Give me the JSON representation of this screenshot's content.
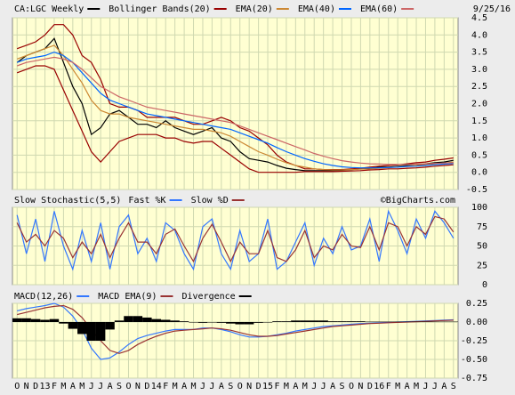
{
  "chart_data": [
    {
      "type": "line",
      "date": "9/25/16",
      "ylim": [
        -0.5,
        4.5
      ],
      "yticks": [
        4.5,
        {
          "value": 4,
          "label": "4.0"
        },
        3.5,
        {
          "value": 3,
          "label": "3.0"
        },
        2.5,
        {
          "value": 2,
          "label": "2.0"
        },
        1.5,
        {
          "value": 1,
          "label": "1.0"
        },
        0.5,
        {
          "value": 0,
          "label": "0.0"
        },
        -0.5
      ],
      "grid": true,
      "series": [
        {
          "name": "CA:LGC Weekly",
          "color": "#000000",
          "values": [
            3.2,
            3.4,
            3.5,
            3.6,
            3.9,
            3.2,
            2.5,
            2.0,
            1.1,
            1.3,
            1.7,
            1.8,
            1.6,
            1.4,
            1.4,
            1.3,
            1.5,
            1.3,
            1.2,
            1.1,
            1.2,
            1.3,
            1.0,
            0.9,
            0.6,
            0.4,
            0.35,
            0.3,
            0.2,
            0.12,
            0.08,
            0.05,
            0.05,
            0.05,
            0.05,
            0.06,
            0.08,
            0.1,
            0.12,
            0.15,
            0.15,
            0.18,
            0.2,
            0.2,
            0.25,
            0.28,
            0.3,
            0.35
          ]
        },
        {
          "name": "Bollinger Bands(20)",
          "color": "#990000",
          "values": [
            3.6,
            3.7,
            3.8,
            4.0,
            4.3,
            4.3,
            4.0,
            3.4,
            3.2,
            2.7,
            2.0,
            1.9,
            1.9,
            1.8,
            1.6,
            1.6,
            1.6,
            1.6,
            1.5,
            1.4,
            1.4,
            1.5,
            1.6,
            1.5,
            1.3,
            1.2,
            1.0,
            0.8,
            0.5,
            0.3,
            0.2,
            0.1,
            0.1,
            0.08,
            0.08,
            0.08,
            0.1,
            0.12,
            0.15,
            0.18,
            0.2,
            0.22,
            0.25,
            0.28,
            0.3,
            0.35,
            0.38,
            0.42
          ],
          "lower": [
            2.9,
            3.0,
            3.1,
            3.1,
            3.0,
            2.4,
            1.8,
            1.2,
            0.6,
            0.3,
            0.6,
            0.9,
            1.0,
            1.1,
            1.1,
            1.1,
            1.0,
            1.0,
            0.9,
            0.85,
            0.9,
            0.9,
            0.7,
            0.5,
            0.3,
            0.1,
            0.0,
            0.0,
            0.0,
            0.0,
            0.0,
            0.02,
            0.02,
            0.02,
            0.02,
            0.03,
            0.04,
            0.05,
            0.07,
            0.08,
            0.1,
            0.1,
            0.12,
            0.13,
            0.15,
            0.18,
            0.2,
            0.22
          ]
        },
        {
          "name": "EMA(20)",
          "color": "#cc8833",
          "values": [
            3.3,
            3.4,
            3.5,
            3.6,
            3.7,
            3.4,
            3.0,
            2.6,
            2.1,
            1.8,
            1.7,
            1.7,
            1.6,
            1.55,
            1.5,
            1.45,
            1.4,
            1.35,
            1.3,
            1.25,
            1.25,
            1.2,
            1.15,
            1.05,
            0.9,
            0.75,
            0.6,
            0.5,
            0.38,
            0.28,
            0.2,
            0.15,
            0.1,
            0.08,
            0.07,
            0.07,
            0.08,
            0.09,
            0.1,
            0.12,
            0.14,
            0.16,
            0.18,
            0.2,
            0.22,
            0.25,
            0.27,
            0.3
          ]
        },
        {
          "name": "EMA(40)",
          "color": "#0066ff",
          "values": [
            3.2,
            3.3,
            3.35,
            3.4,
            3.5,
            3.4,
            3.2,
            2.9,
            2.6,
            2.3,
            2.1,
            2.0,
            1.9,
            1.8,
            1.7,
            1.65,
            1.6,
            1.55,
            1.5,
            1.45,
            1.4,
            1.35,
            1.3,
            1.25,
            1.15,
            1.05,
            0.95,
            0.85,
            0.72,
            0.6,
            0.5,
            0.4,
            0.32,
            0.25,
            0.2,
            0.16,
            0.14,
            0.13,
            0.13,
            0.13,
            0.14,
            0.15,
            0.17,
            0.18,
            0.2,
            0.22,
            0.24,
            0.26
          ]
        },
        {
          "name": "EMA(60)",
          "color": "#cc6666",
          "values": [
            3.1,
            3.2,
            3.25,
            3.3,
            3.35,
            3.3,
            3.2,
            3.0,
            2.75,
            2.5,
            2.35,
            2.2,
            2.1,
            2.0,
            1.9,
            1.85,
            1.8,
            1.75,
            1.7,
            1.65,
            1.6,
            1.55,
            1.5,
            1.45,
            1.35,
            1.25,
            1.15,
            1.05,
            0.95,
            0.85,
            0.75,
            0.65,
            0.55,
            0.47,
            0.4,
            0.34,
            0.3,
            0.27,
            0.25,
            0.24,
            0.23,
            0.23,
            0.23,
            0.24,
            0.25,
            0.26,
            0.27,
            0.28
          ]
        }
      ]
    },
    {
      "type": "line",
      "title": "Slow Stochastic(5,5)",
      "watermark": "©BigCharts.com",
      "ylim": [
        0,
        100
      ],
      "yticks": [
        100,
        75,
        50,
        25,
        0
      ],
      "grid": true,
      "series": [
        {
          "name": "Fast %K",
          "color": "#3377ff",
          "values": [
            90,
            40,
            85,
            30,
            95,
            50,
            20,
            70,
            30,
            80,
            20,
            75,
            90,
            40,
            60,
            30,
            80,
            70,
            40,
            20,
            75,
            85,
            40,
            20,
            70,
            30,
            40,
            85,
            20,
            30,
            55,
            80,
            25,
            60,
            40,
            75,
            45,
            50,
            85,
            30,
            95,
            70,
            40,
            85,
            60,
            95,
            80,
            60
          ]
        },
        {
          "name": "Slow %D",
          "color": "#993333",
          "values": [
            80,
            55,
            65,
            50,
            70,
            60,
            35,
            55,
            40,
            65,
            35,
            60,
            80,
            55,
            55,
            40,
            65,
            72,
            50,
            30,
            60,
            78,
            55,
            30,
            55,
            40,
            40,
            70,
            35,
            30,
            45,
            70,
            35,
            50,
            45,
            65,
            50,
            48,
            75,
            45,
            80,
            75,
            50,
            75,
            65,
            88,
            85,
            68
          ]
        }
      ]
    },
    {
      "type": "line",
      "categories": [
        "O",
        "N",
        "D",
        "13",
        "F",
        "M",
        "A",
        "M",
        "J",
        "J",
        "A",
        "S",
        "O",
        "N",
        "D",
        "14",
        "F",
        "M",
        "A",
        "M",
        "J",
        "J",
        "A",
        "S",
        "O",
        "N",
        "D",
        "15",
        "F",
        "M",
        "A",
        "M",
        "J",
        "J",
        "A",
        "S",
        "O",
        "N",
        "D",
        "16",
        "F",
        "M",
        "A",
        "M",
        "J",
        "J",
        "A",
        "S"
      ],
      "ylim": [
        -0.75,
        0.25
      ],
      "yticks": [
        0.25,
        {
          "value": 0,
          "label": "0.00"
        },
        -0.25,
        {
          "value": -0.5,
          "label": "-0.50"
        },
        -0.75
      ],
      "grid": true,
      "series": [
        {
          "name": "MACD(12,26)",
          "color": "#3377ff",
          "values": [
            0.15,
            0.18,
            0.2,
            0.22,
            0.25,
            0.2,
            0.08,
            -0.1,
            -0.35,
            -0.5,
            -0.48,
            -0.4,
            -0.3,
            -0.22,
            -0.18,
            -0.15,
            -0.12,
            -0.1,
            -0.1,
            -0.1,
            -0.08,
            -0.08,
            -0.1,
            -0.13,
            -0.17,
            -0.2,
            -0.2,
            -0.19,
            -0.17,
            -0.15,
            -0.12,
            -0.1,
            -0.08,
            -0.06,
            -0.05,
            -0.04,
            -0.03,
            -0.02,
            -0.015,
            -0.01,
            -0.005,
            0.0,
            0.005,
            0.01,
            0.015,
            0.02,
            0.025,
            0.03
          ]
        },
        {
          "name": "MACD EMA(9)",
          "color": "#993333",
          "values": [
            0.1,
            0.13,
            0.16,
            0.19,
            0.21,
            0.22,
            0.17,
            0.06,
            -0.1,
            -0.25,
            -0.38,
            -0.42,
            -0.38,
            -0.3,
            -0.24,
            -0.19,
            -0.15,
            -0.12,
            -0.11,
            -0.1,
            -0.09,
            -0.08,
            -0.09,
            -0.11,
            -0.14,
            -0.17,
            -0.19,
            -0.19,
            -0.18,
            -0.16,
            -0.14,
            -0.12,
            -0.1,
            -0.08,
            -0.06,
            -0.05,
            -0.04,
            -0.03,
            -0.02,
            -0.015,
            -0.01,
            -0.005,
            0.0,
            0.005,
            0.01,
            0.015,
            0.02,
            0.025
          ]
        },
        {
          "name": "Divergence",
          "color": "#000000",
          "kind": "bar",
          "values": [
            0.05,
            0.05,
            0.04,
            0.03,
            0.04,
            -0.02,
            -0.09,
            -0.16,
            -0.25,
            -0.25,
            -0.1,
            0.02,
            0.08,
            0.08,
            0.06,
            0.04,
            0.03,
            0.02,
            0.01,
            0.0,
            -0.01,
            0.0,
            -0.01,
            -0.02,
            -0.03,
            -0.03,
            -0.01,
            0.0,
            0.01,
            0.01,
            0.02,
            0.02,
            0.02,
            0.02,
            0.01,
            0.01,
            0.01,
            0.01,
            0.005,
            0.005,
            0.005,
            0.005,
            0.005,
            0.005,
            0.005,
            0.005,
            0.005,
            0.005
          ]
        }
      ]
    }
  ]
}
